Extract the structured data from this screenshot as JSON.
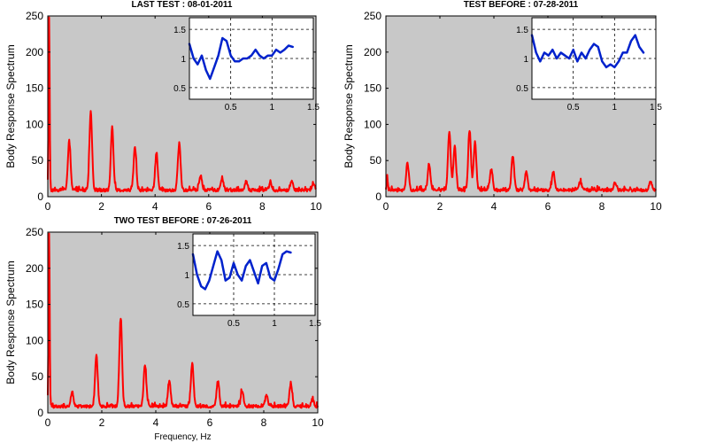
{
  "colors": {
    "background": "#ffffff",
    "plot_bg": "#c8c8c8",
    "inset_bg": "#ffffff",
    "spectrum": "#ff0000",
    "inset_line": "#0022cc",
    "axis": "#000000"
  },
  "chart_data": [
    {
      "type": "line",
      "title": "LAST TEST : 08-01-2011",
      "xlabel": "",
      "ylabel": "Body Response Spectrum",
      "xlim": [
        0,
        10
      ],
      "ylim": [
        0,
        250
      ],
      "xticks": [
        "0",
        "2",
        "4",
        "6",
        "8",
        "10"
      ],
      "yticks": [
        "0",
        "50",
        "100",
        "150",
        "200",
        "250"
      ],
      "grid": false,
      "series": [
        {
          "color": "#ff0000",
          "peaks": [
            [
              0.05,
              240
            ],
            [
              0.8,
              68
            ],
            [
              1.6,
              110
            ],
            [
              2.4,
              87
            ],
            [
              3.25,
              60
            ],
            [
              4.05,
              50
            ],
            [
              4.9,
              65
            ],
            [
              5.7,
              20
            ],
            [
              6.5,
              15
            ],
            [
              7.4,
              12
            ],
            [
              8.3,
              10
            ],
            [
              9.1,
              12
            ],
            [
              9.9,
              10
            ]
          ]
        }
      ],
      "inset": {
        "type": "line",
        "xlim": [
          0,
          1.5
        ],
        "ylim": [
          0.3,
          1.7
        ],
        "xticks": [
          "0.5",
          "1",
          "1.5"
        ],
        "yticks": [
          "0.5",
          "1",
          "1.5"
        ],
        "grid": true,
        "x": [
          0,
          0.05,
          0.1,
          0.15,
          0.2,
          0.25,
          0.3,
          0.35,
          0.4,
          0.45,
          0.5,
          0.55,
          0.6,
          0.65,
          0.7,
          0.75,
          0.8,
          0.85,
          0.9,
          0.95,
          1.0,
          1.05,
          1.1,
          1.15,
          1.2,
          1.25
        ],
        "y": [
          1.25,
          1.0,
          0.9,
          1.05,
          0.8,
          0.65,
          0.85,
          1.05,
          1.35,
          1.3,
          1.05,
          0.95,
          0.95,
          1.0,
          1.0,
          1.05,
          1.15,
          1.05,
          1.0,
          1.05,
          1.05,
          1.15,
          1.1,
          1.15,
          1.22,
          1.2
        ]
      }
    },
    {
      "type": "line",
      "title": "TEST BEFORE : 07-28-2011",
      "xlabel": "",
      "ylabel": "Body Response Spectrum",
      "xlim": [
        0,
        10
      ],
      "ylim": [
        0,
        250
      ],
      "xticks": [
        "0",
        "2",
        "4",
        "6",
        "8",
        "10"
      ],
      "yticks": [
        "0",
        "50",
        "100",
        "150",
        "200",
        "250"
      ],
      "grid": false,
      "series": [
        {
          "color": "#ff0000",
          "peaks": [
            [
              0.05,
              18
            ],
            [
              0.8,
              38
            ],
            [
              1.6,
              35
            ],
            [
              2.35,
              80
            ],
            [
              2.55,
              60
            ],
            [
              3.1,
              82
            ],
            [
              3.3,
              65
            ],
            [
              3.9,
              30
            ],
            [
              4.7,
              48
            ],
            [
              5.2,
              25
            ],
            [
              6.2,
              25
            ],
            [
              7.2,
              12
            ],
            [
              8.5,
              10
            ],
            [
              9.8,
              12
            ]
          ]
        }
      ],
      "inset": {
        "type": "line",
        "xlim": [
          0,
          1.5
        ],
        "ylim": [
          0.3,
          1.7
        ],
        "xticks": [
          "0.5",
          "1",
          "1.5"
        ],
        "yticks": [
          "0.5",
          "1",
          "1.5"
        ],
        "grid": true,
        "x": [
          0,
          0.05,
          0.1,
          0.15,
          0.2,
          0.25,
          0.3,
          0.35,
          0.4,
          0.45,
          0.5,
          0.55,
          0.6,
          0.65,
          0.7,
          0.75,
          0.8,
          0.85,
          0.9,
          0.95,
          1.0,
          1.05,
          1.1,
          1.15,
          1.2,
          1.25,
          1.3,
          1.35
        ],
        "y": [
          1.4,
          1.1,
          0.95,
          1.1,
          1.05,
          1.15,
          1.0,
          1.1,
          1.05,
          1.0,
          1.15,
          0.95,
          1.1,
          1.0,
          1.15,
          1.25,
          1.2,
          0.95,
          0.85,
          0.9,
          0.85,
          0.95,
          1.1,
          1.1,
          1.3,
          1.4,
          1.2,
          1.1
        ]
      }
    },
    {
      "type": "line",
      "title": "TWO TEST BEFORE : 07-26-2011",
      "xlabel": "Frequency, Hz",
      "ylabel": "Body Response Spectrum",
      "xlim": [
        0,
        10
      ],
      "ylim": [
        0,
        250
      ],
      "xticks": [
        "0",
        "2",
        "4",
        "6",
        "8",
        "10"
      ],
      "yticks": [
        "0",
        "50",
        "100",
        "150",
        "200",
        "250"
      ],
      "grid": false,
      "series": [
        {
          "color": "#ff0000",
          "peaks": [
            [
              0.05,
              245
            ],
            [
              0.9,
              20
            ],
            [
              1.8,
              72
            ],
            [
              2.7,
              122
            ],
            [
              3.6,
              58
            ],
            [
              4.5,
              35
            ],
            [
              5.35,
              60
            ],
            [
              6.3,
              35
            ],
            [
              7.2,
              22
            ],
            [
              8.1,
              15
            ],
            [
              9.0,
              32
            ],
            [
              9.8,
              10
            ]
          ]
        }
      ],
      "inset": {
        "type": "line",
        "xlim": [
          0,
          1.5
        ],
        "ylim": [
          0.3,
          1.7
        ],
        "xticks": [
          "0.5",
          "1",
          "1.5"
        ],
        "yticks": [
          "0.5",
          "1",
          "1.5"
        ],
        "grid": true,
        "x": [
          0,
          0.05,
          0.1,
          0.15,
          0.2,
          0.25,
          0.3,
          0.35,
          0.4,
          0.45,
          0.5,
          0.55,
          0.6,
          0.65,
          0.7,
          0.75,
          0.8,
          0.85,
          0.9,
          0.95,
          1.0,
          1.05,
          1.1,
          1.15,
          1.2
        ],
        "y": [
          1.35,
          1.0,
          0.8,
          0.75,
          0.9,
          1.15,
          1.4,
          1.25,
          0.9,
          0.95,
          1.2,
          1.0,
          0.9,
          1.15,
          1.25,
          1.05,
          0.85,
          1.15,
          1.2,
          0.95,
          0.9,
          1.1,
          1.35,
          1.4,
          1.38
        ]
      }
    }
  ]
}
